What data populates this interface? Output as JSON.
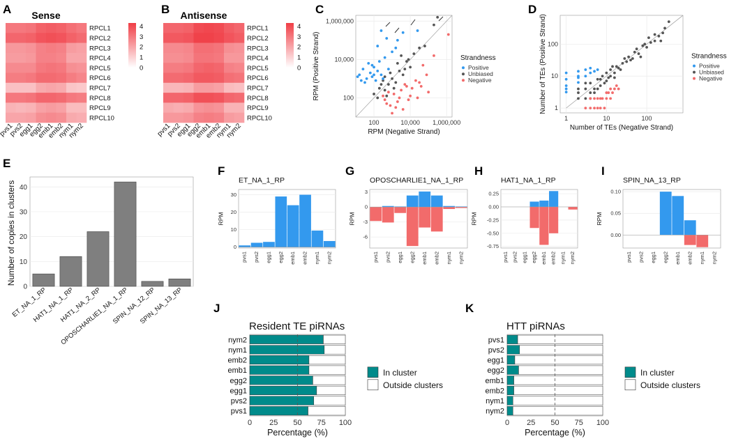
{
  "colors": {
    "positive": "#3399ee",
    "unbiased": "#555555",
    "negative": "#f26b6b",
    "teal": "#008b8b",
    "bar_gray": "#7f7f7f",
    "heat_high": "#f03e46",
    "heat_low": "#ffffff"
  },
  "chart_data": [
    {
      "panel": "A",
      "type": "heatmap",
      "title": "Sense",
      "columns": [
        "pvs1",
        "pvs2",
        "egg1",
        "egg2",
        "emb1",
        "emb2",
        "nym1",
        "nym2"
      ],
      "rows": [
        "RPCL1",
        "RPCL2",
        "RPCL3",
        "RPCL4",
        "RPCL5",
        "RPCL6",
        "RPCL7",
        "RPCL8",
        "RPCL9",
        "RPCL10"
      ],
      "values": [
        [
          3.0,
          3.0,
          3.1,
          3.5,
          3.6,
          3.5,
          3.2,
          3.0
        ],
        [
          3.4,
          3.4,
          3.5,
          3.8,
          3.9,
          3.8,
          3.5,
          3.3
        ],
        [
          2.3,
          2.3,
          2.4,
          2.8,
          2.9,
          2.8,
          2.2,
          2.1
        ],
        [
          2.2,
          2.2,
          2.3,
          2.8,
          2.8,
          2.7,
          2.0,
          2.0
        ],
        [
          2.6,
          2.6,
          2.6,
          3.0,
          3.1,
          3.0,
          2.5,
          2.4
        ],
        [
          2.9,
          2.9,
          3.0,
          3.3,
          3.3,
          3.2,
          2.9,
          2.7
        ],
        [
          1.4,
          1.4,
          1.4,
          1.9,
          2.0,
          1.9,
          1.3,
          1.2
        ],
        [
          3.0,
          3.0,
          3.1,
          3.4,
          3.4,
          3.3,
          3.0,
          2.9
        ],
        [
          1.7,
          1.6,
          1.7,
          2.1,
          2.2,
          2.1,
          1.5,
          1.5
        ],
        [
          2.0,
          2.0,
          2.1,
          2.5,
          2.6,
          2.5,
          1.9,
          1.8
        ]
      ],
      "legend_ticks": [
        "4",
        "3",
        "2",
        "1",
        "0"
      ],
      "range": [
        0,
        4.3
      ]
    },
    {
      "panel": "B",
      "type": "heatmap",
      "title": "Antisense",
      "columns": [
        "pvs1",
        "pvs2",
        "egg1",
        "egg2",
        "emb1",
        "emb2",
        "nym1",
        "nym2"
      ],
      "rows": [
        "RPCL1",
        "RPCL2",
        "RPCL3",
        "RPCL4",
        "RPCL5",
        "RPCL6",
        "RPCL7",
        "RPCL8",
        "RPCL9",
        "RPCL10"
      ],
      "values": [
        [
          3.4,
          3.4,
          3.5,
          4.0,
          4.1,
          4.0,
          3.6,
          3.4
        ],
        [
          3.7,
          3.7,
          3.8,
          4.2,
          4.2,
          4.1,
          3.8,
          3.6
        ],
        [
          2.6,
          2.6,
          2.7,
          3.2,
          3.2,
          3.1,
          2.5,
          2.4
        ],
        [
          2.5,
          2.5,
          2.6,
          3.1,
          3.1,
          3.0,
          2.3,
          2.3
        ],
        [
          2.9,
          2.9,
          3.0,
          3.4,
          3.5,
          3.4,
          2.8,
          2.7
        ],
        [
          3.3,
          3.3,
          3.4,
          3.7,
          3.7,
          3.6,
          3.2,
          3.1
        ],
        [
          1.6,
          1.6,
          1.7,
          2.2,
          2.2,
          2.1,
          1.5,
          1.4
        ],
        [
          3.4,
          3.4,
          3.5,
          3.9,
          3.9,
          3.8,
          3.4,
          3.3
        ],
        [
          1.9,
          1.8,
          1.9,
          2.4,
          2.5,
          2.4,
          1.7,
          1.7
        ],
        [
          2.3,
          2.3,
          2.4,
          2.8,
          2.9,
          2.8,
          2.2,
          2.1
        ]
      ],
      "legend_ticks": [
        "4",
        "3",
        "2",
        "1",
        "0"
      ],
      "range": [
        0,
        4.3
      ]
    },
    {
      "panel": "C",
      "type": "scatter",
      "xlabel": "RPM (Negative Strand)",
      "ylabel": "RPM (Positive Strand)",
      "scale": "log10",
      "xlim": [
        1.0,
        6.3
      ],
      "ylim": [
        1.0,
        6.3
      ],
      "x_ticks": [
        "100",
        "10,000",
        "1,000,000"
      ],
      "y_ticks": [
        "1,000,000",
        "10,000",
        "100"
      ],
      "legend_title": "Strandness",
      "legend": [
        "Positive",
        "Unbiased",
        "Negative"
      ],
      "positive": [
        [
          1.2,
          3.2
        ],
        [
          1.4,
          3.5
        ],
        [
          1.6,
          3.0
        ],
        [
          1.8,
          3.3
        ],
        [
          1.5,
          2.8
        ],
        [
          1.9,
          3.1
        ],
        [
          2.0,
          3.6
        ],
        [
          2.2,
          3.4
        ],
        [
          1.3,
          2.9
        ],
        [
          2.3,
          3.9
        ],
        [
          1.7,
          3.8
        ],
        [
          2.1,
          2.9
        ],
        [
          2.4,
          3.2
        ],
        [
          1.9,
          3.7
        ],
        [
          2.6,
          4.1
        ],
        [
          2.8,
          3.5
        ],
        [
          3.0,
          4.4
        ],
        [
          1.1,
          3.1
        ],
        [
          2.5,
          3.0
        ],
        [
          2.0,
          3.2
        ],
        [
          3.2,
          4.6
        ],
        [
          2.7,
          5.1
        ],
        [
          3.6,
          5.4
        ],
        [
          2.4,
          5.5
        ],
        [
          4.4,
          5.5
        ],
        [
          2.2,
          4.7
        ],
        [
          3.3,
          5.0
        ]
      ],
      "unbiased": [
        [
          2.0,
          2.2
        ],
        [
          2.3,
          2.5
        ],
        [
          2.6,
          2.4
        ],
        [
          2.5,
          2.9
        ],
        [
          2.8,
          2.7
        ],
        [
          3.0,
          3.0
        ],
        [
          3.2,
          2.8
        ],
        [
          2.9,
          3.3
        ],
        [
          3.4,
          3.4
        ],
        [
          3.6,
          3.2
        ],
        [
          3.3,
          3.8
        ],
        [
          3.8,
          3.9
        ],
        [
          4.0,
          3.6
        ],
        [
          3.5,
          4.2
        ],
        [
          4.2,
          4.3
        ],
        [
          4.5,
          4.6
        ],
        [
          2.2,
          2.0
        ],
        [
          2.7,
          2.1
        ],
        [
          3.1,
          2.5
        ],
        [
          2.4,
          2.7
        ],
        [
          3.9,
          4.0
        ],
        [
          4.8,
          4.7
        ],
        [
          3.7,
          3.5
        ],
        [
          2.6,
          3.1
        ],
        [
          5.5,
          6.2
        ],
        [
          5.3,
          5.8
        ]
      ],
      "negative": [
        [
          2.6,
          1.9
        ],
        [
          2.9,
          1.6
        ],
        [
          3.1,
          2.2
        ],
        [
          3.4,
          2.0
        ],
        [
          3.6,
          1.4
        ],
        [
          2.8,
          2.3
        ],
        [
          3.3,
          1.8
        ],
        [
          3.8,
          2.6
        ],
        [
          4.0,
          2.1
        ],
        [
          3.0,
          1.2
        ],
        [
          3.5,
          2.4
        ],
        [
          4.3,
          2.9
        ],
        [
          4.7,
          3.7
        ],
        [
          5.0,
          2.3
        ],
        [
          4.5,
          2.8
        ],
        [
          3.2,
          1.5
        ],
        [
          2.7,
          1.7
        ],
        [
          3.9,
          1.9
        ],
        [
          4.1,
          2.5
        ],
        [
          5.3,
          4.2
        ],
        [
          4.9,
          3.2
        ],
        [
          4.4,
          2.0
        ],
        [
          2.5,
          2.1
        ],
        [
          3.7,
          2.7
        ],
        [
          4.6,
          2.6
        ],
        [
          6.1,
          5.3
        ]
      ]
    },
    {
      "panel": "D",
      "type": "scatter",
      "xlabel": "Number of TEs (Negative Strand)",
      "ylabel": "Number of TEs (Positive Strand)",
      "scale": "log10",
      "xlim": [
        -0.15,
        2.9
      ],
      "ylim": [
        -0.15,
        2.9
      ],
      "x_ticks": [
        "1",
        "10",
        "100"
      ],
      "y_ticks": [
        "100",
        "10",
        "1"
      ],
      "legend_title": "Strandness",
      "legend": [
        "Positive",
        "Unbiased",
        "Negative"
      ],
      "positive": [
        [
          0,
          0.5
        ],
        [
          0,
          0.7
        ],
        [
          0,
          0.9
        ],
        [
          0.3,
          0.8
        ],
        [
          0.3,
          1.0
        ],
        [
          0.48,
          1.0
        ],
        [
          0.6,
          1.1
        ],
        [
          0.7,
          1.15
        ],
        [
          0.78,
          1.2
        ],
        [
          0,
          1.1
        ],
        [
          0.3,
          1.15
        ],
        [
          0.48,
          1.2
        ],
        [
          0.6,
          1.25
        ],
        [
          0,
          0.6
        ],
        [
          0.3,
          0.95
        ]
      ],
      "unbiased": [
        [
          0.3,
          0.3
        ],
        [
          0.3,
          0.48
        ],
        [
          0.48,
          0.3
        ],
        [
          0.48,
          0.6
        ],
        [
          0.6,
          0.48
        ],
        [
          0.6,
          0.78
        ],
        [
          0.7,
          0.6
        ],
        [
          0.78,
          0.9
        ],
        [
          0.85,
          0.7
        ],
        [
          0.9,
          1.0
        ],
        [
          1.0,
          0.85
        ],
        [
          1.0,
          1.1
        ],
        [
          1.1,
          1.0
        ],
        [
          1.1,
          1.2
        ],
        [
          1.2,
          1.1
        ],
        [
          1.25,
          1.3
        ],
        [
          1.3,
          1.25
        ],
        [
          1.4,
          1.4
        ],
        [
          1.5,
          1.45
        ],
        [
          1.55,
          1.6
        ],
        [
          1.6,
          1.5
        ],
        [
          1.7,
          1.75
        ],
        [
          1.8,
          1.7
        ],
        [
          1.9,
          1.95
        ],
        [
          2.0,
          1.9
        ],
        [
          2.1,
          2.05
        ],
        [
          2.2,
          2.1
        ],
        [
          2.3,
          2.25
        ],
        [
          2.4,
          2.35
        ],
        [
          2.55,
          2.7
        ],
        [
          0.3,
          0.6
        ],
        [
          0.48,
          0.78
        ],
        [
          0.6,
          0.3
        ],
        [
          0.7,
          0.48
        ],
        [
          0.78,
          0.6
        ],
        [
          0.85,
          0.9
        ],
        [
          0.95,
          0.78
        ],
        [
          1.05,
          0.95
        ],
        [
          1.15,
          1.3
        ],
        [
          1.2,
          0.95
        ],
        [
          1.35,
          1.2
        ],
        [
          1.45,
          1.55
        ],
        [
          1.65,
          1.55
        ],
        [
          1.75,
          1.85
        ],
        [
          1.95,
          2.0
        ],
        [
          2.2,
          2.3
        ],
        [
          2.45,
          2.5
        ],
        [
          1.85,
          1.6
        ],
        [
          2.05,
          2.2
        ],
        [
          2.35,
          2.1
        ]
      ],
      "negative": [
        [
          0.48,
          0
        ],
        [
          0.6,
          0
        ],
        [
          0.7,
          0
        ],
        [
          0.78,
          0
        ],
        [
          0.85,
          0
        ],
        [
          0.9,
          0.3
        ],
        [
          1.0,
          0.3
        ],
        [
          1.05,
          0.48
        ],
        [
          1.1,
          0.3
        ],
        [
          1.15,
          0.48
        ],
        [
          0.95,
          0
        ],
        [
          1.2,
          0.6
        ],
        [
          1.0,
          0.48
        ],
        [
          0.85,
          0.3
        ],
        [
          1.1,
          0.6
        ],
        [
          0.78,
          0.3
        ],
        [
          0.6,
          0.3
        ],
        [
          1.25,
          0.7
        ],
        [
          1.3,
          0.6
        ],
        [
          0.7,
          0.3
        ]
      ]
    },
    {
      "panel": "E",
      "type": "bar",
      "ylabel": "Number of copies in clusters",
      "categories": [
        "ET_NA_1_RP",
        "HAT1_NA_1_RP",
        "HAT1_NA_2_RP",
        "OPOSCHARLIE1_NA_1_RP",
        "SPIN_NA_12_RP",
        "SPIN_NA_13_RP"
      ],
      "values": [
        5,
        12,
        22,
        42,
        2,
        3
      ],
      "ylim": [
        0,
        44
      ],
      "y_ticks": [
        "40",
        "30",
        "20",
        "10",
        "0"
      ]
    },
    {
      "panel": "F",
      "type": "bar",
      "title": "ET_NA_1_RP",
      "ylabel": "RPM",
      "categories": [
        "pvs1",
        "pvs2",
        "egg1",
        "egg2",
        "emb1",
        "emb2",
        "nym1",
        "nym2"
      ],
      "positive": [
        1,
        2.5,
        3,
        29,
        24,
        30,
        9.5,
        3.5
      ],
      "negative": [
        0,
        0,
        0,
        0,
        0,
        0,
        0,
        0
      ],
      "ylim": [
        -0.5,
        33
      ],
      "y_ticks": [
        "30",
        "20",
        "10",
        "0"
      ],
      "y_tick_values": [
        30,
        20,
        10,
        0
      ]
    },
    {
      "panel": "G",
      "type": "bar",
      "title": "OPOSCHARLIE1_NA_1_RP",
      "ylabel": "RPM",
      "categories": [
        "pvs1",
        "pvs2",
        "egg1",
        "egg2",
        "emb1",
        "emb2",
        "nym1",
        "nym2"
      ],
      "positive": [
        0,
        0.2,
        0.1,
        2.3,
        3.1,
        2.3,
        0.2,
        0.1
      ],
      "negative": [
        -2.8,
        -3.1,
        -1.2,
        -7.8,
        -4.1,
        -4.9,
        -0.4,
        -0.2
      ],
      "ylim": [
        -8.2,
        3.5
      ],
      "y_ticks": [
        "3",
        "0",
        "-3",
        "-6"
      ],
      "y_tick_values": [
        3,
        0,
        -3,
        -6
      ]
    },
    {
      "panel": "H",
      "type": "bar",
      "title": "HAT1_NA_1_RP",
      "ylabel": "RPM",
      "categories": [
        "pvs1",
        "pvs2",
        "egg1",
        "egg2",
        "emb1",
        "emb2",
        "nym1",
        "nym2"
      ],
      "positive": [
        0,
        0,
        0,
        0.1,
        0.12,
        0.3,
        0,
        0
      ],
      "negative": [
        0,
        0,
        0,
        -0.4,
        -0.72,
        -0.5,
        0,
        -0.05
      ],
      "ylim": [
        -0.78,
        0.33
      ],
      "y_ticks": [
        "0.25",
        "0.00",
        "-0.25",
        "-0.50",
        "-0.75"
      ],
      "y_tick_values": [
        0.25,
        0,
        -0.25,
        -0.5,
        -0.75
      ]
    },
    {
      "panel": "I",
      "type": "bar",
      "title": "SPIN_NA_13_RP",
      "ylabel": "RPM",
      "categories": [
        "pvs1",
        "pvs2",
        "egg1",
        "egg2",
        "emb1",
        "emb2",
        "nym1",
        "nym2"
      ],
      "positive": [
        0,
        0,
        0,
        0.1,
        0.09,
        0.034,
        0,
        0
      ],
      "negative": [
        0,
        0,
        0,
        0,
        0,
        -0.023,
        -0.028,
        0
      ],
      "ylim": [
        -0.03,
        0.105
      ],
      "y_ticks": [
        "0.10",
        "0.05",
        "0.00"
      ],
      "y_tick_values": [
        0.1,
        0.05,
        0
      ]
    },
    {
      "panel": "J",
      "type": "bar",
      "orientation": "horizontal",
      "title": "Resident TE piRNAs",
      "xlabel": "Percentage (%)",
      "categories": [
        "nym2",
        "nym1",
        "emb2",
        "emb1",
        "egg2",
        "egg1",
        "pvs2",
        "pvs1"
      ],
      "in_cluster": [
        77,
        78,
        62,
        62,
        66,
        70,
        67,
        61
      ],
      "xlim": [
        0,
        100
      ],
      "x_ticks": [
        "0",
        "25",
        "50",
        "75",
        "100"
      ],
      "legend": [
        "In cluster",
        "Outside clusters"
      ]
    },
    {
      "panel": "K",
      "type": "bar",
      "orientation": "horizontal",
      "title": "HTT piRNAs",
      "xlabel": "Percentage (%)",
      "categories": [
        "pvs1",
        "pvs2",
        "egg1",
        "egg2",
        "emb1",
        "emb2",
        "nym1",
        "nym2"
      ],
      "in_cluster": [
        11,
        13,
        8,
        12,
        7,
        7,
        6,
        6
      ],
      "xlim": [
        0,
        100
      ],
      "x_ticks": [
        "0",
        "25",
        "50",
        "75",
        "100"
      ],
      "legend": [
        "In cluster",
        "Outside clusters"
      ]
    }
  ],
  "panel_labels": [
    "A",
    "B",
    "C",
    "D",
    "E",
    "F",
    "G",
    "H",
    "I",
    "J",
    "K"
  ]
}
